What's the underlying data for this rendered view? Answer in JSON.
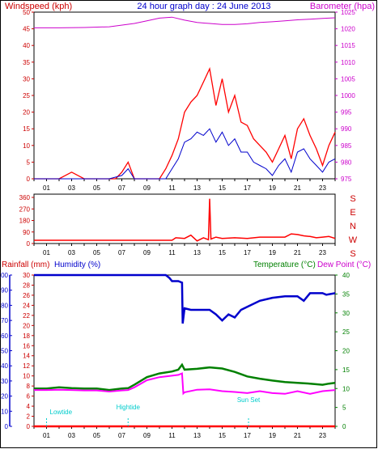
{
  "header": {
    "windspeed_label": "Windspeed (kph)",
    "title": "24 hour graph day : 24 June 2013",
    "barometer_label": "Barometer (hpa)"
  },
  "colors": {
    "wind": "#ff0000",
    "avg_wind": "#0000cc",
    "barometer": "#cc00cc",
    "direction": "#ff0000",
    "rainfall": "#ff0000",
    "humidity": "#0000cc",
    "temperature": "#008000",
    "dewpoint": "#ff00ff",
    "tide": "#00cccc",
    "frame": "#000000"
  },
  "chart_data": [
    {
      "type": "line",
      "title": "24 hour graph day : 24 June 2013",
      "x_ticks": [
        "01",
        "03",
        "05",
        "07",
        "09",
        "11",
        "13",
        "15",
        "17",
        "19",
        "21",
        "23"
      ],
      "xlim": [
        0,
        24
      ],
      "left_axis": {
        "label": "Windspeed (kph)",
        "ylim": [
          0,
          50
        ],
        "ticks": [
          "0",
          "5",
          "10",
          "15",
          "20",
          "25",
          "30",
          "35",
          "40",
          "45",
          "50"
        ]
      },
      "right_axis": {
        "label": "Barometer (hpa)",
        "ylim": [
          975,
          1025
        ],
        "ticks": [
          "975",
          "980",
          "985",
          "990",
          "995",
          "1000",
          "1005",
          "1010",
          "1015",
          "1020",
          "1025"
        ]
      },
      "series": [
        {
          "axis": "right",
          "x": [
            0,
            2,
            4,
            6,
            8,
            9,
            10,
            11,
            12,
            13,
            14,
            15,
            16,
            17,
            18,
            19,
            20,
            21,
            22,
            23,
            24
          ],
          "y": [
            1020.3,
            1020.3,
            1020.4,
            1020.6,
            1021.6,
            1022.4,
            1023.2,
            1023.5,
            1022.6,
            1021.9,
            1021.6,
            1021.3,
            1021.3,
            1021.5,
            1021.9,
            1022.1,
            1022.4,
            1022.7,
            1022.9,
            1023.1,
            1023.3
          ]
        },
        {
          "axis": "left",
          "x": [
            0,
            1,
            2,
            3,
            4,
            5,
            6,
            6.5,
            7,
            7.5,
            8,
            9,
            10,
            10.5,
            11,
            11.5,
            12,
            12.5,
            13,
            13.5,
            14,
            14.5,
            15,
            15.5,
            16,
            16.5,
            17,
            17.5,
            18,
            18.5,
            19,
            19.5,
            20,
            20.5,
            21,
            21.5,
            22,
            22.5,
            23,
            23.5,
            24
          ],
          "y": [
            0,
            0,
            0,
            2,
            0,
            0,
            0,
            0,
            2,
            5,
            0,
            0,
            0,
            3,
            7,
            12,
            20,
            23,
            25,
            29,
            33,
            22,
            30,
            20,
            25,
            17,
            16,
            12,
            10,
            8,
            5,
            9,
            13,
            6,
            15,
            18,
            13,
            9,
            4,
            10,
            14
          ]
        },
        {
          "axis": "left",
          "x": [
            0,
            6,
            7,
            7.5,
            8,
            10.5,
            11,
            11.5,
            12,
            12.5,
            13,
            13.5,
            14,
            14.5,
            15,
            15.5,
            16,
            16.5,
            17,
            17.5,
            18,
            18.5,
            19,
            19.5,
            20,
            20.5,
            21,
            21.5,
            22,
            22.5,
            23,
            23.5,
            24
          ],
          "y": [
            0,
            0,
            1,
            3,
            0,
            0,
            3,
            6,
            11,
            12,
            14,
            13,
            15,
            11,
            14,
            10,
            12,
            8,
            8,
            5,
            4,
            3,
            1,
            4,
            6,
            2,
            8,
            9,
            6,
            4,
            2,
            5,
            6
          ]
        }
      ]
    },
    {
      "type": "line",
      "title": "",
      "x_ticks": [
        "01",
        "03",
        "05",
        "07",
        "09",
        "11",
        "13",
        "15",
        "17",
        "19",
        "21",
        "23"
      ],
      "xlim": [
        0,
        24
      ],
      "left_axis": {
        "label": "",
        "ylim": [
          0,
          360
        ],
        "ticks": [
          "0",
          "90",
          "180",
          "270",
          "360"
        ]
      },
      "right_axis": {
        "label": "",
        "letters": [
          "S",
          "E",
          "N",
          "W",
          "S"
        ]
      },
      "series": [
        {
          "x": [
            0,
            11,
            11.3,
            12,
            12.5,
            13,
            13.5,
            13.9,
            14,
            14.1,
            14.5,
            15,
            16,
            17,
            18,
            19,
            20,
            20.5,
            21,
            21.5,
            22,
            22.5,
            23,
            23.5,
            24
          ],
          "y": [
            25,
            25,
            45,
            40,
            65,
            20,
            45,
            30,
            350,
            35,
            50,
            40,
            45,
            40,
            50,
            50,
            50,
            75,
            70,
            60,
            55,
            45,
            50,
            55,
            40
          ]
        }
      ]
    },
    {
      "type": "line",
      "title": "",
      "x_ticks": [
        "01",
        "03",
        "05",
        "07",
        "09",
        "11",
        "13",
        "15",
        "17",
        "19",
        "21",
        "23"
      ],
      "xlim": [
        0,
        24
      ],
      "labels": {
        "rainfall": "Rainfall (mm)",
        "humidity": "Humidity (%)",
        "temperature": "Temperature (°C)",
        "dewpoint": "Dew Point (°C)"
      },
      "axes": {
        "humidity": {
          "ylim": [
            0,
            100
          ],
          "ticks": [
            "0",
            "10",
            "20",
            "30",
            "40",
            "50",
            "60",
            "70",
            "80",
            "90",
            "100"
          ]
        },
        "rainfall": {
          "ylim": [
            0,
            30
          ],
          "ticks": [
            "0",
            "2",
            "4",
            "6",
            "8",
            "10",
            "12",
            "14",
            "16",
            "18",
            "20",
            "22",
            "24",
            "26",
            "28",
            "30"
          ]
        },
        "temperature": {
          "ylim": [
            0,
            40
          ],
          "ticks": [
            "0",
            "5",
            "10",
            "15",
            "20",
            "25",
            "30",
            "35",
            "40"
          ]
        }
      },
      "series": [
        {
          "name": "Humidity",
          "axis": "humidity",
          "x": [
            0,
            9,
            10.5,
            10.8,
            11,
            11.5,
            11.8,
            11.85,
            12,
            12.5,
            13,
            14,
            14.5,
            15,
            15.5,
            16,
            16.5,
            17,
            18,
            19,
            20,
            21,
            21.5,
            22,
            23,
            23.3,
            24
          ],
          "y": [
            100,
            100,
            100,
            98,
            96,
            96,
            95,
            68,
            78,
            77,
            77,
            77,
            74,
            70,
            74,
            72,
            77,
            79,
            83,
            85,
            86,
            86,
            83,
            88,
            88,
            87,
            88
          ]
        },
        {
          "name": "Temperature",
          "axis": "temperature",
          "x": [
            0,
            1,
            2,
            3,
            4,
            5,
            6,
            7,
            7.5,
            8,
            9,
            10,
            11,
            11.5,
            11.8,
            12,
            13,
            14,
            15,
            16,
            17,
            18,
            19,
            20,
            21,
            22,
            23,
            23.5,
            24
          ],
          "y": [
            10,
            10,
            10.3,
            10.1,
            10,
            10,
            9.6,
            10,
            10.1,
            11,
            13,
            14,
            14.5,
            15,
            16.3,
            15,
            15.2,
            15.6,
            15.3,
            14.4,
            13.2,
            12.6,
            12.1,
            11.7,
            11.5,
            11.3,
            11,
            11.3,
            11.5
          ]
        },
        {
          "name": "Dew Point",
          "axis": "temperature",
          "x": [
            0,
            1,
            2,
            3,
            4,
            5,
            6,
            7,
            7.5,
            8,
            9,
            10,
            11,
            11.5,
            11.8,
            11.9,
            12,
            13,
            14,
            15,
            16,
            17,
            18,
            19,
            20,
            21,
            22,
            23,
            24
          ],
          "y": [
            9.6,
            9.6,
            9.7,
            9.6,
            9.5,
            9.5,
            9.2,
            9.5,
            9.6,
            10.3,
            12.2,
            13,
            13.4,
            13.6,
            14,
            8.7,
            9,
            9.7,
            9.8,
            9.3,
            9.1,
            8.8,
            9.3,
            8.8,
            8.6,
            9.3,
            8.6,
            9.3,
            9.6
          ]
        },
        {
          "name": "Rainfall",
          "axis": "rainfall",
          "x": [
            0,
            24
          ],
          "y": [
            0,
            0
          ]
        }
      ],
      "annotations": [
        {
          "text": "Lowtide",
          "x": 1
        },
        {
          "text": "Hightide",
          "x": 7.5
        },
        {
          "text": "Sun Set",
          "x": 17.1
        }
      ]
    }
  ]
}
